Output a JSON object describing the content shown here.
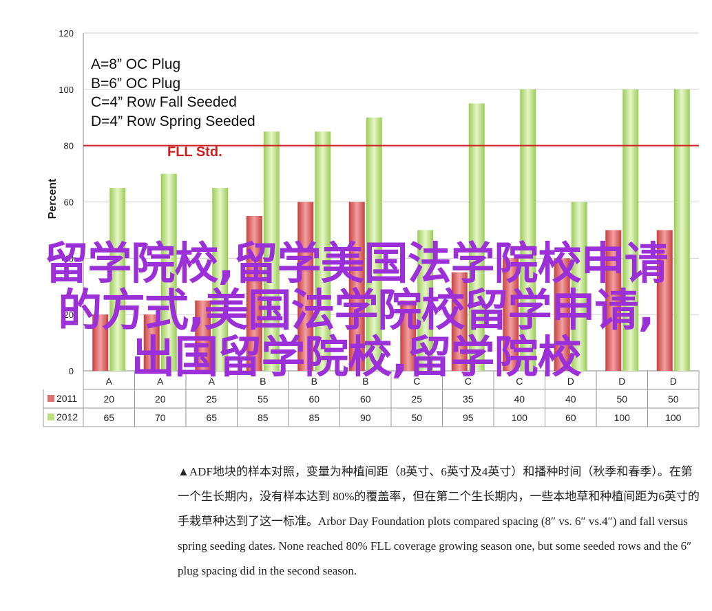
{
  "chart_data": {
    "type": "bar",
    "ylabel": "Percent",
    "ylim": [
      0,
      120
    ],
    "yticks": [
      0,
      20,
      40,
      60,
      80,
      100,
      120
    ],
    "categories": [
      "A",
      "A",
      "A",
      "B",
      "B",
      "B",
      "C",
      "C",
      "C",
      "D",
      "D",
      "D"
    ],
    "series": [
      {
        "name": "2011",
        "color": "#e07070",
        "values": [
          20,
          20,
          25,
          55,
          60,
          60,
          25,
          35,
          40,
          40,
          50,
          50
        ]
      },
      {
        "name": "2012",
        "color": "#b8e080",
        "values": [
          65,
          70,
          65,
          85,
          85,
          90,
          50,
          95,
          100,
          60,
          100,
          100
        ]
      }
    ],
    "reference_line": {
      "value": 80,
      "label": "FLL Std.",
      "color": "#cc2020"
    },
    "key": [
      "A=8” OC Plug",
      "B=6” OC Plug",
      "C=4” Row Fall Seeded",
      "D=4” Row Spring Seeded"
    ],
    "grid": true
  },
  "overlay": {
    "line1": "留学院校,留学美国法学院校申请",
    "line2": "的方式,美国法学院校留学申请,",
    "line3": "出国留学院校,留学院校"
  },
  "caption": "▲ADF地块的样本对照，变量为种植间距（8英寸、6英寸及4英寸）和播种时间（秋季和春季）。在第一个生长期内，没有样本达到 80%的覆盖率，但在第二个生长期内，一些本地草和种植间距为6英寸的手栽草种达到了这一标准。Arbor Day Foundation plots compared spacing (8″ vs. 6″ vs.4″) and fall versus spring seeding dates. None reached 80% FLL coverage growing season one, but some seeded rows and the 6″ plug spacing did in the second season."
}
